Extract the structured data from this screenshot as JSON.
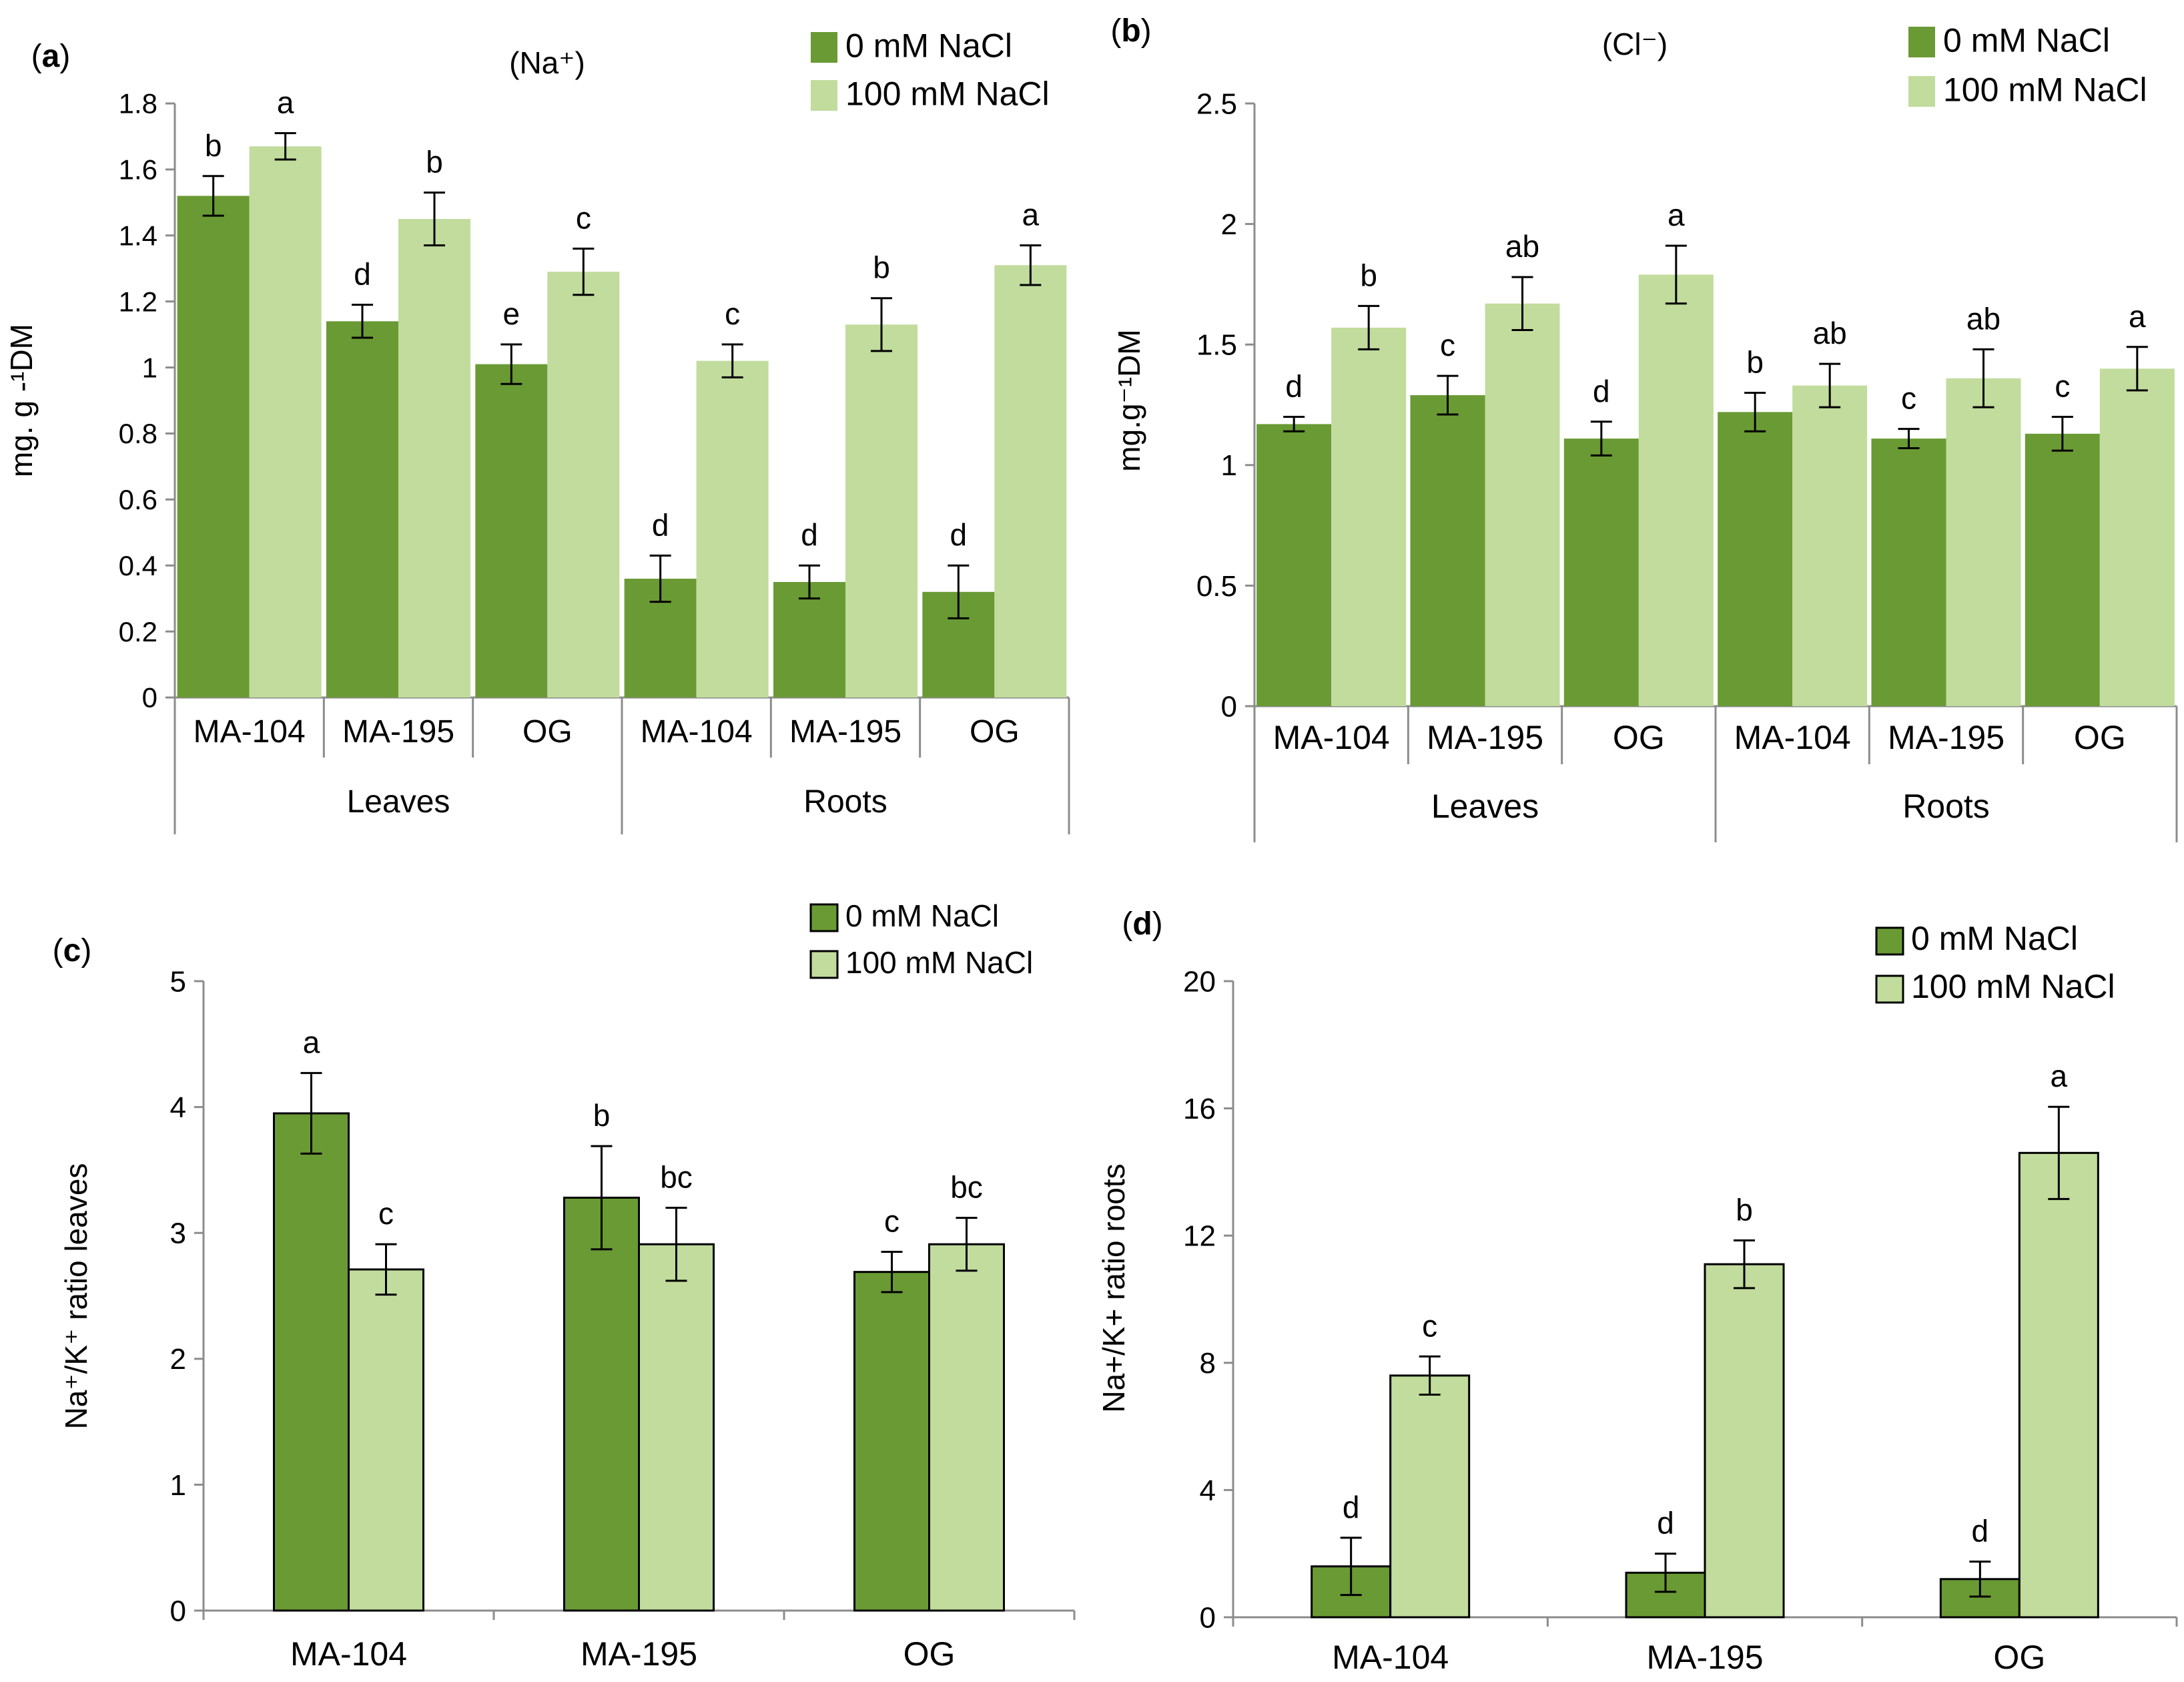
{
  "colors": {
    "dark_green": "#6a9a34",
    "light_green": "#c1dc9c",
    "axis": "#8c8c8c",
    "text": "#000000"
  },
  "chart_data": [
    {
      "id": "a",
      "panel_label": "a",
      "title": "(Na⁺)",
      "type": "bar",
      "ylabel": "mg. g -¹DM",
      "ylim": [
        0,
        1.8
      ],
      "yticks": [
        0,
        0.2,
        0.4,
        0.6,
        0.8,
        1,
        1.2,
        1.4,
        1.6,
        1.8
      ],
      "ytick_labels": [
        "0",
        "0.2",
        "0.4",
        "0.6",
        "0.8",
        "1",
        "1.2",
        "1.4",
        "1.6",
        "1.8"
      ],
      "categories": [
        "MA-104",
        "MA-195",
        "OG",
        "MA-104",
        "MA-195",
        "OG"
      ],
      "groups": [
        {
          "label": "Leaves",
          "span": 3
        },
        {
          "label": "Roots",
          "span": 3
        }
      ],
      "legend": [
        "0 mM NaCl",
        "100 mM NaCl"
      ],
      "legend_placement": "top-right",
      "series": [
        {
          "name": "0 mM NaCl",
          "values": [
            1.52,
            1.14,
            1.01,
            0.36,
            0.35,
            0.32
          ],
          "errors": [
            0.06,
            0.05,
            0.06,
            0.07,
            0.05,
            0.08
          ],
          "letters": [
            "b",
            "d",
            "e",
            "d",
            "d",
            "d"
          ]
        },
        {
          "name": "100 mM NaCl",
          "values": [
            1.67,
            1.45,
            1.29,
            1.02,
            1.13,
            1.31
          ],
          "errors": [
            0.04,
            0.08,
            0.07,
            0.05,
            0.08,
            0.06
          ],
          "letters": [
            "a",
            "b",
            "c",
            "c",
            "b",
            "a"
          ]
        }
      ]
    },
    {
      "id": "b",
      "panel_label": "b",
      "title": "(Cl⁻)",
      "type": "bar",
      "ylabel": "mg.g⁻¹DM",
      "ylim": [
        0,
        2.5
      ],
      "yticks": [
        0,
        0.5,
        1,
        1.5,
        2,
        2.5
      ],
      "ytick_labels": [
        "0",
        "0.5",
        "1",
        "1.5",
        "2",
        "2.5"
      ],
      "categories": [
        "MA-104",
        "MA-195",
        "OG",
        "MA-104",
        "MA-195",
        "OG"
      ],
      "groups": [
        {
          "label": "Leaves",
          "span": 3
        },
        {
          "label": "Roots",
          "span": 3
        }
      ],
      "legend": [
        "0 mM NaCl",
        "100 mM NaCl"
      ],
      "legend_placement": "top-right",
      "series": [
        {
          "name": "0 mM NaCl",
          "values": [
            1.17,
            1.29,
            1.11,
            1.22,
            1.11,
            1.13
          ],
          "errors": [
            0.03,
            0.08,
            0.07,
            0.08,
            0.04,
            0.07
          ],
          "letters": [
            "d",
            "c",
            "d",
            "b",
            "c",
            "c"
          ]
        },
        {
          "name": "100 mM NaCl",
          "values": [
            1.57,
            1.67,
            1.79,
            1.33,
            1.36,
            1.4
          ],
          "errors": [
            0.09,
            0.11,
            0.12,
            0.09,
            0.12,
            0.09
          ],
          "letters": [
            "b",
            "ab",
            "a",
            "ab",
            "ab",
            "a"
          ]
        }
      ]
    },
    {
      "id": "c",
      "panel_label": "c",
      "title": "",
      "type": "bar",
      "ylabel": "Na⁺/K⁺ ratio leaves",
      "ylim": [
        0,
        5
      ],
      "yticks": [
        0,
        1,
        2,
        3,
        4,
        5
      ],
      "ytick_labels": [
        "0",
        "1",
        "2",
        "3",
        "4",
        "5"
      ],
      "categories": [
        "MA-104",
        "MA-195",
        "OG"
      ],
      "groups": [],
      "legend": [
        "0 mM NaCl",
        "100 mM NaCl"
      ],
      "legend_placement": "top-right",
      "series": [
        {
          "name": "0 mM NaCl",
          "values": [
            3.95,
            3.28,
            2.69
          ],
          "errors": [
            0.32,
            0.41,
            0.16
          ],
          "letters": [
            "a",
            "b",
            "c"
          ]
        },
        {
          "name": "100 mM NaCl",
          "values": [
            2.71,
            2.91,
            2.91
          ],
          "errors": [
            0.2,
            0.29,
            0.21
          ],
          "letters": [
            "c",
            "bc",
            "bc"
          ]
        }
      ]
    },
    {
      "id": "d",
      "panel_label": "d",
      "title": "",
      "type": "bar",
      "ylabel": "Na+/K+ ratio roots",
      "ylim": [
        0,
        20
      ],
      "yticks": [
        0,
        4,
        8,
        12,
        16,
        20
      ],
      "ytick_labels": [
        "0",
        "4",
        "8",
        "12",
        "16",
        "20"
      ],
      "categories": [
        "MA-104",
        "MA-195",
        "OG"
      ],
      "groups": [],
      "legend": [
        "0 mM NaCl",
        "100 mM NaCl"
      ],
      "legend_placement": "top-right",
      "series": [
        {
          "name": "0 mM NaCl",
          "values": [
            1.6,
            1.4,
            1.2
          ],
          "errors": [
            0.9,
            0.6,
            0.55
          ],
          "letters": [
            "d",
            "d",
            "d"
          ]
        },
        {
          "name": "100 mM NaCl",
          "values": [
            7.6,
            11.1,
            14.6
          ],
          "errors": [
            0.6,
            0.75,
            1.45
          ],
          "letters": [
            "c",
            "b",
            "a"
          ]
        }
      ]
    }
  ]
}
